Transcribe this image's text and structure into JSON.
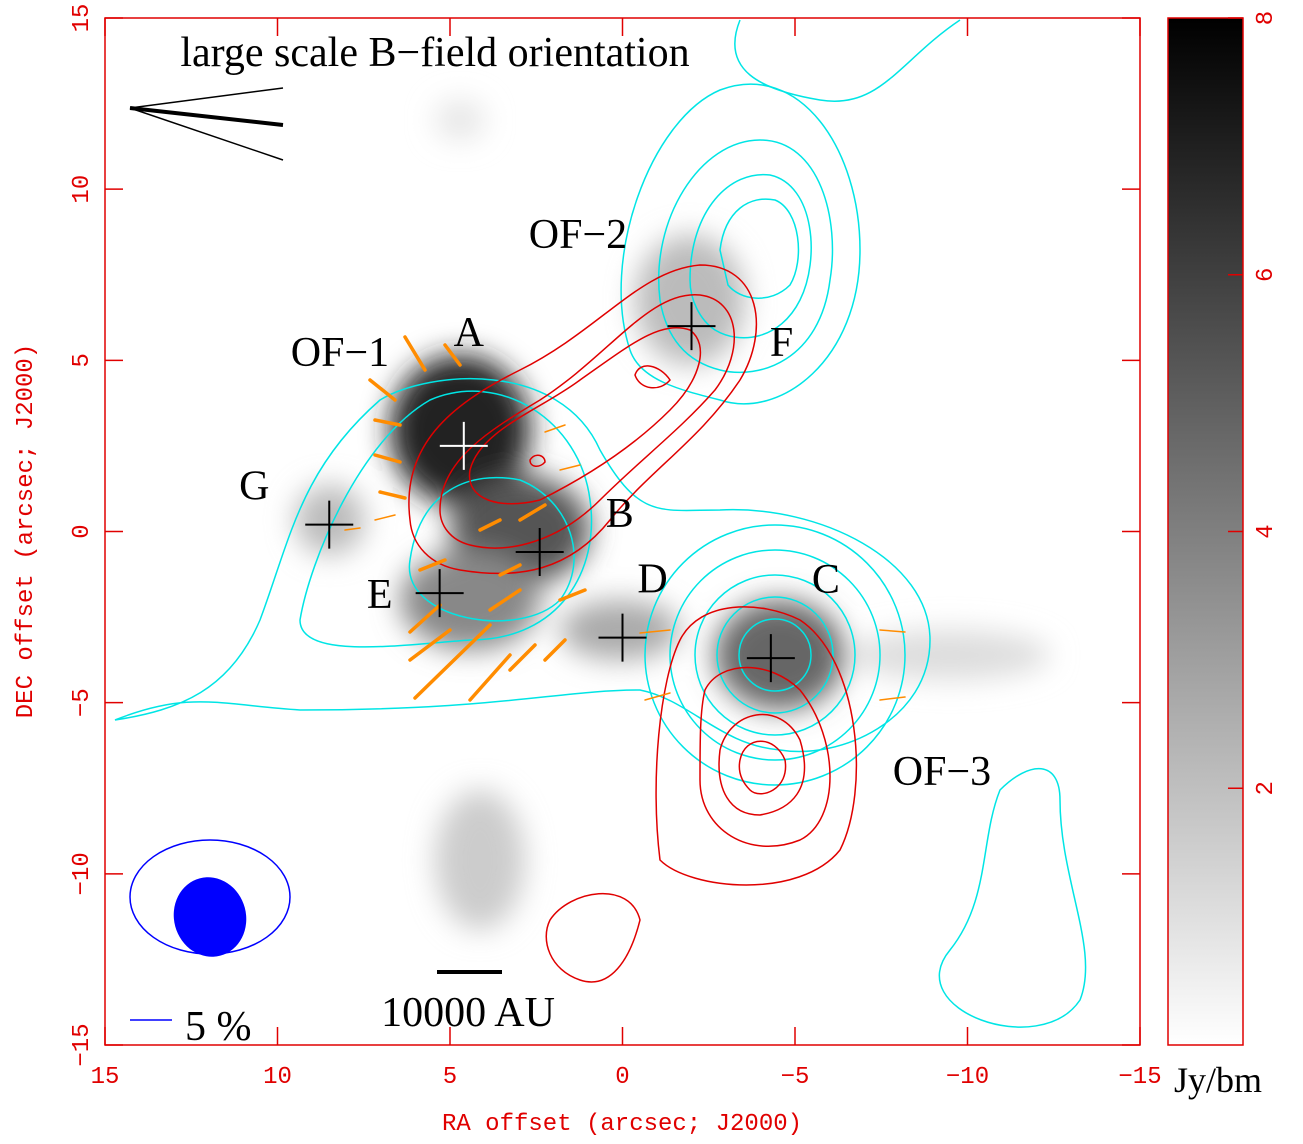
{
  "chart_data": {
    "type": "scatter",
    "xlabel": "RA offset (arcsec; J2000)",
    "ylabel": "DEC offset (arcsec; J2000)",
    "xlim": [
      15,
      -15
    ],
    "ylim": [
      -15,
      15
    ],
    "xticks": [
      15,
      10,
      5,
      0,
      {
        "value": -5,
        "label": "−5"
      },
      {
        "value": -10,
        "label": "−10"
      },
      {
        "value": -15,
        "label": "−15"
      }
    ],
    "yticks": [
      {
        "value": -15,
        "label": "−15"
      },
      {
        "value": -10,
        "label": "−10"
      },
      {
        "value": -5,
        "label": "−5"
      },
      0,
      5,
      10,
      15
    ],
    "labels": [
      "A",
      "B",
      "C",
      "D",
      "E",
      "F",
      "G"
    ],
    "x": [
      4.6,
      2.4,
      -4.3,
      0,
      5.3,
      -2.0,
      8.5
    ],
    "values": [
      2.5,
      -0.6,
      -3.7,
      -3.1,
      -1.8,
      6.0,
      0.2
    ],
    "marker_colors": [
      "#ffffff",
      "#000000",
      "#000000",
      "#000000",
      "#000000",
      "#000000",
      "#000000"
    ],
    "annotations": [
      "large scale B−field orientation",
      "OF−1",
      "OF−2",
      "OF−3",
      "10000 AU",
      "5 %"
    ],
    "colorbar": {
      "label": "Jy/bm",
      "lim": [
        0,
        8
      ],
      "ticks": [
        2,
        4,
        6,
        8
      ]
    }
  }
}
